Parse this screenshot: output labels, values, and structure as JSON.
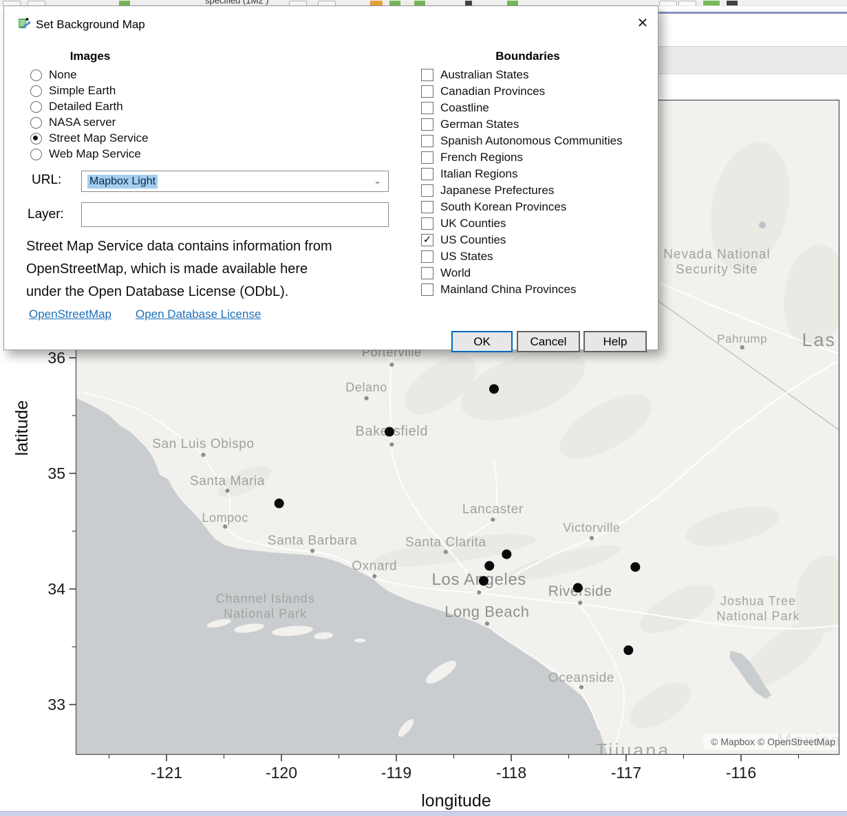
{
  "app": {
    "toolbar_fragment_text": "specified (1M2 )"
  },
  "dialog": {
    "title": "Set Background Map",
    "close_glyph": "✕",
    "images": {
      "heading": "Images",
      "options": [
        {
          "label": "None",
          "selected": false
        },
        {
          "label": "Simple Earth",
          "selected": false
        },
        {
          "label": "Detailed Earth",
          "selected": false
        },
        {
          "label": "NASA server",
          "selected": false
        },
        {
          "label": "Street Map Service",
          "selected": true
        },
        {
          "label": "Web Map Service",
          "selected": false
        }
      ]
    },
    "boundaries": {
      "heading": "Boundaries",
      "options": [
        {
          "label": "Australian States",
          "checked": false
        },
        {
          "label": "Canadian Provinces",
          "checked": false
        },
        {
          "label": "Coastline",
          "checked": false
        },
        {
          "label": "German States",
          "checked": false
        },
        {
          "label": "Spanish Autonomous Communities",
          "checked": false
        },
        {
          "label": "French Regions",
          "checked": false
        },
        {
          "label": "Italian Regions",
          "checked": false
        },
        {
          "label": "Japanese Prefectures",
          "checked": false
        },
        {
          "label": "South Korean Provinces",
          "checked": false
        },
        {
          "label": "UK Counties",
          "checked": false
        },
        {
          "label": "US Counties",
          "checked": true
        },
        {
          "label": "US States",
          "checked": false
        },
        {
          "label": "World",
          "checked": false
        },
        {
          "label": "Mainland China Provinces",
          "checked": false
        }
      ]
    },
    "url": {
      "label": "URL:",
      "value": "Mapbox Light"
    },
    "layer": {
      "label": "Layer:",
      "value": ""
    },
    "notice": "Street Map Service data contains information from\nOpenStreetMap, which is made available here\nunder the Open Database License (ODbL).",
    "links": [
      {
        "label": "OpenStreetMap"
      },
      {
        "label": "Open Database License"
      }
    ],
    "buttons": {
      "ok": "OK",
      "cancel": "Cancel",
      "help": "Help"
    }
  },
  "chart_data": {
    "type": "scatter",
    "title": "",
    "xlabel": "longitude",
    "ylabel": "latitude",
    "xlim": [
      -121.79,
      -115.14
    ],
    "ylim": [
      32.57,
      38.23
    ],
    "x_ticks": [
      -121,
      -120,
      -119,
      -118,
      -117,
      -116
    ],
    "x_minor_ticks": [
      -121.5,
      -120.5,
      -119.5,
      -118.5,
      -117.5,
      -116.5,
      -115.5
    ],
    "y_ticks": [
      36,
      35,
      34,
      33
    ],
    "y_minor_ticks": [
      36.5,
      35.5,
      34.5,
      33.5
    ],
    "grid": false,
    "background": "Mapbox Light street map, US Counties boundaries",
    "points": [
      {
        "lon": -118.15,
        "lat": 35.73
      },
      {
        "lon": -119.06,
        "lat": 35.36
      },
      {
        "lon": -120.02,
        "lat": 34.74
      },
      {
        "lon": -118.04,
        "lat": 34.3
      },
      {
        "lon": -118.19,
        "lat": 34.2
      },
      {
        "lon": -118.24,
        "lat": 34.07
      },
      {
        "lon": -116.92,
        "lat": 34.19
      },
      {
        "lon": -117.42,
        "lat": 34.01
      },
      {
        "lon": -116.98,
        "lat": 33.47
      }
    ]
  },
  "map": {
    "attribution": "© Mapbox © OpenStreetMap",
    "colors": {
      "ocean": "#c9cdd0",
      "land": "#f2f1ee",
      "label": "#a0a09d",
      "point": "#0b0b0b"
    },
    "places": [
      {
        "label": "Porterville",
        "lon": -119.04,
        "lat": 35.94,
        "dot": true,
        "size": 18,
        "dy": -12
      },
      {
        "label": "Delano",
        "lon": -119.26,
        "lat": 35.65,
        "dot": true,
        "size": 18,
        "dy": -10
      },
      {
        "label": "Bakersfield",
        "lon": -119.04,
        "lat": 35.25,
        "dot": true,
        "size": 20,
        "dy": -13
      },
      {
        "label": "San Luis Obispo",
        "lon": -120.68,
        "lat": 35.16,
        "dot": true,
        "size": 19,
        "dy": -10
      },
      {
        "label": "Santa Maria",
        "lon": -120.47,
        "lat": 34.85,
        "dot": true,
        "size": 19,
        "dy": -8
      },
      {
        "label": "Lompoc",
        "lon": -120.49,
        "lat": 34.54,
        "dot": true,
        "size": 18,
        "dy": -7
      },
      {
        "label": "Santa Barbara",
        "lon": -119.73,
        "lat": 34.33,
        "dot": true,
        "size": 19,
        "dy": -9
      },
      {
        "label": "Oxnard",
        "lon": -119.19,
        "lat": 34.11,
        "dot": true,
        "size": 19,
        "dy": -9
      },
      {
        "label": "Santa Clarita",
        "lon": -118.57,
        "lat": 34.32,
        "dot": true,
        "size": 19,
        "dy": -8
      },
      {
        "label": "Lancaster",
        "lon": -118.16,
        "lat": 34.6,
        "dot": true,
        "size": 19,
        "dy": -9
      },
      {
        "label": "Victorville",
        "lon": -117.3,
        "lat": 34.44,
        "dot": true,
        "size": 18,
        "dy": -9
      },
      {
        "label": "Los Angeles",
        "lon": -118.28,
        "lat": 33.97,
        "dot": true,
        "size": 24,
        "dy": -11,
        "color": "#8f8f8c"
      },
      {
        "label": "Long Beach",
        "lon": -118.21,
        "lat": 33.7,
        "dot": true,
        "size": 22,
        "dy": -10,
        "color": "#8f8f8c"
      },
      {
        "label": "Riverside",
        "lon": -117.4,
        "lat": 33.88,
        "dot": true,
        "size": 21,
        "dy": -10,
        "color": "#8f8f8c"
      },
      {
        "label": "Oceanside",
        "lon": -117.39,
        "lat": 33.15,
        "dot": true,
        "size": 19,
        "dy": -8
      },
      {
        "label": "Pahrump",
        "lon": -115.99,
        "lat": 36.09,
        "dot": true,
        "size": 17,
        "dy": -7
      },
      {
        "label": "Las Vegas",
        "lon": -115.47,
        "lat": 36.1,
        "size": 27,
        "anchor": "start",
        "color": "#96968f",
        "spacing": 2
      },
      {
        "label": "Tijuana",
        "lon": -116.94,
        "lat": 32.55,
        "size": 27,
        "color": "#a8a8a4",
        "spacing": 3
      },
      {
        "label": "Mexicali",
        "lon": -115.36,
        "lat": 32.64,
        "size": 26,
        "color": "#c4c4c0",
        "spacing": 2
      },
      {
        "lines": [
          "Nevada National",
          "Security Site"
        ],
        "lon": -116.21,
        "lat": 36.86,
        "gap": 22,
        "size": 19,
        "color": "#a3a39e",
        "spacing": 1
      },
      {
        "lines": [
          "Channel Islands",
          "National Park"
        ],
        "lon": -120.14,
        "lat": 33.88,
        "gap": 22,
        "size": 18,
        "color": "#a3a39e",
        "spacing": 1
      },
      {
        "lines": [
          "Joshua Tree",
          "National Park"
        ],
        "lon": -115.85,
        "lat": 33.86,
        "gap": 22,
        "size": 18,
        "color": "#a3a39e",
        "spacing": 1
      }
    ]
  }
}
